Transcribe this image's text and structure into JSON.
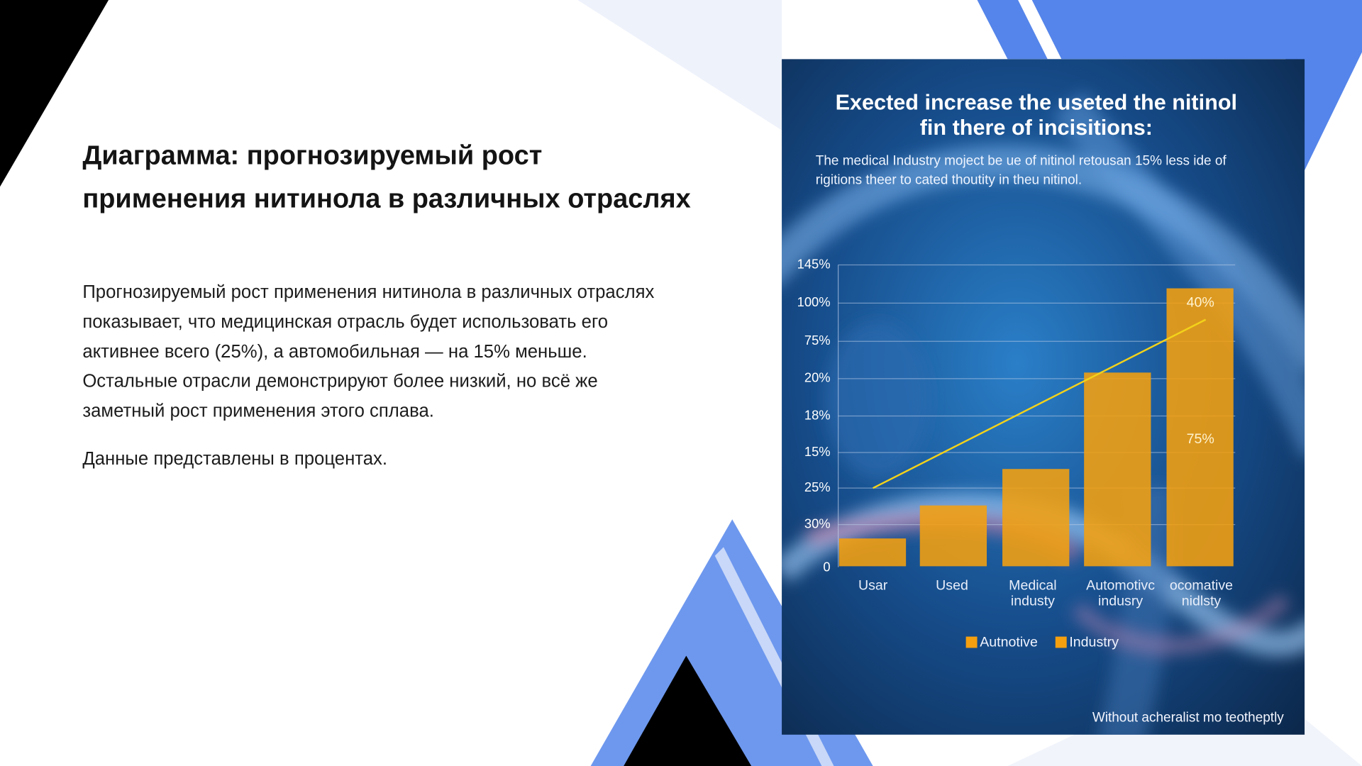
{
  "slide": {
    "title": [
      "Диаграмма: прогнозируемый рост",
      "применения нитинола в различных отраслях"
    ],
    "paragraph": [
      "Прогнозируемый рост применения нитинола в различных отраслях",
      "показывает, что медицинская отрасль будет использовать его",
      "активнее всего (25%), а автомобильная — на 15% меньше.",
      "Остальные отрасли демонстрируют более низкий, но всё же",
      "заметный рост применения этого сплава."
    ],
    "note": "Данные представлены в процентах."
  },
  "figure": {
    "title": [
      "Exected increase the useted the nitinol",
      "fin there of incisitions:"
    ],
    "subtitle": [
      "The medical Industry moject be ue of nitinol retousan 15% less ide of",
      "rigitions theer to cated thoutity in theu nitinol."
    ],
    "tick_labels": [
      "145%",
      "100%",
      "75%",
      "20%",
      "18%",
      "15%",
      "25%",
      "30%",
      "0"
    ],
    "categories": [
      [
        "Usar"
      ],
      [
        "Used"
      ],
      [
        "Medical",
        "industy"
      ],
      [
        "Automotivc",
        "indusry"
      ],
      [
        "ocomative",
        "nidlsty"
      ]
    ],
    "bar_labels": [
      "40%",
      "75%"
    ],
    "legend": [
      "Autnotive",
      "Industry"
    ],
    "footer": "Without acheralist mo teotheptly"
  }
}
